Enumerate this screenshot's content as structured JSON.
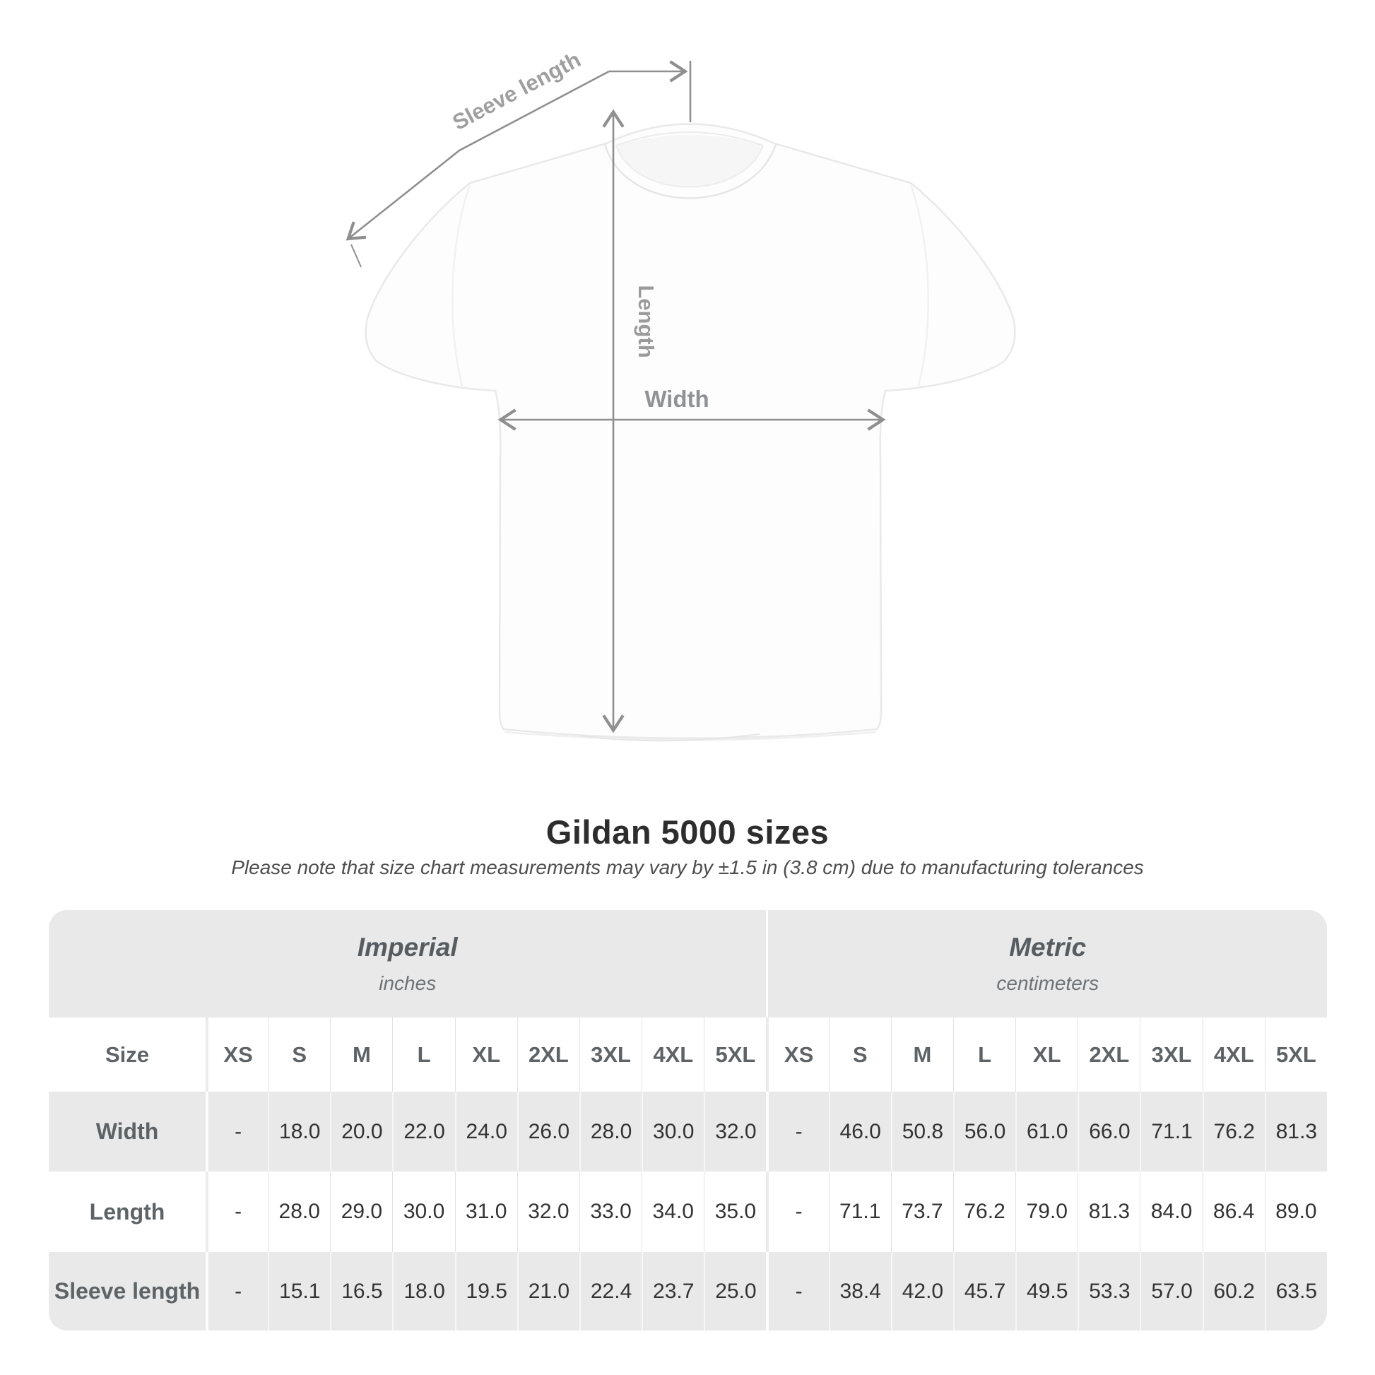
{
  "diagram": {
    "sleeve_length_label": "Sleeve length",
    "length_label": "Length",
    "width_label": "Width",
    "line_color": "#8f8f8f",
    "label_color": "#9a9a9a"
  },
  "title": "Gildan 5000 sizes",
  "subtitle": "Please note that size chart measurements may vary by ±1.5 in (3.8 cm) due to manufacturing tolerances",
  "table": {
    "size_header": "Size",
    "groups": [
      {
        "name": "Imperial",
        "unit": "inches"
      },
      {
        "name": "Metric",
        "unit": "centimeters"
      }
    ],
    "sizes": [
      "XS",
      "S",
      "M",
      "L",
      "XL",
      "2XL",
      "3XL",
      "4XL",
      "5XL"
    ],
    "rows": [
      {
        "label": "Width",
        "imperial": [
          "-",
          "18.0",
          "20.0",
          "22.0",
          "24.0",
          "26.0",
          "28.0",
          "30.0",
          "32.0"
        ],
        "metric": [
          "-",
          "46.0",
          "50.8",
          "56.0",
          "61.0",
          "66.0",
          "71.1",
          "76.2",
          "81.3"
        ]
      },
      {
        "label": "Length",
        "imperial": [
          "-",
          "28.0",
          "29.0",
          "30.0",
          "31.0",
          "32.0",
          "33.0",
          "34.0",
          "35.0"
        ],
        "metric": [
          "-",
          "71.1",
          "73.7",
          "76.2",
          "79.0",
          "81.3",
          "84.0",
          "86.4",
          "89.0"
        ]
      },
      {
        "label": "Sleeve length",
        "imperial": [
          "-",
          "15.1",
          "16.5",
          "18.0",
          "19.5",
          "21.0",
          "22.4",
          "23.7",
          "25.0"
        ],
        "metric": [
          "-",
          "38.4",
          "42.0",
          "45.7",
          "49.5",
          "53.3",
          "57.0",
          "60.2",
          "63.5"
        ]
      }
    ],
    "gray_color": "#e9e9e9"
  },
  "chart_data": {
    "type": "table",
    "title": "Gildan 5000 sizes",
    "note": "Please note that size chart measurements may vary by ±1.5 in (3.8 cm) due to manufacturing tolerances",
    "column_groups": [
      "Imperial (inches)",
      "Metric (centimeters)"
    ],
    "sizes": [
      "XS",
      "S",
      "M",
      "L",
      "XL",
      "2XL",
      "3XL",
      "4XL",
      "5XL"
    ],
    "measurements": [
      {
        "name": "Width",
        "imperial_in": [
          null,
          18.0,
          20.0,
          22.0,
          24.0,
          26.0,
          28.0,
          30.0,
          32.0
        ],
        "metric_cm": [
          null,
          46.0,
          50.8,
          56.0,
          61.0,
          66.0,
          71.1,
          76.2,
          81.3
        ]
      },
      {
        "name": "Length",
        "imperial_in": [
          null,
          28.0,
          29.0,
          30.0,
          31.0,
          32.0,
          33.0,
          34.0,
          35.0
        ],
        "metric_cm": [
          null,
          71.1,
          73.7,
          76.2,
          79.0,
          81.3,
          84.0,
          86.4,
          89.0
        ]
      },
      {
        "name": "Sleeve length",
        "imperial_in": [
          null,
          15.1,
          16.5,
          18.0,
          19.5,
          21.0,
          22.4,
          23.7,
          25.0
        ],
        "metric_cm": [
          null,
          38.4,
          42.0,
          45.7,
          49.5,
          53.3,
          57.0,
          60.2,
          63.5
        ]
      }
    ]
  }
}
